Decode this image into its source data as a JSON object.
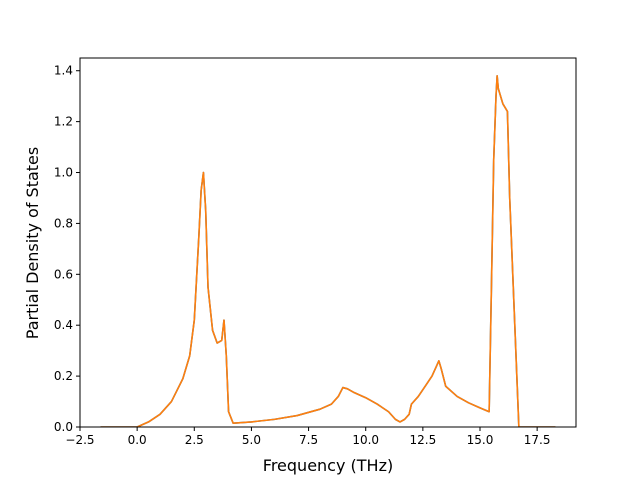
{
  "chart_data": {
    "type": "line",
    "title": "",
    "xlabel": "Frequency (THz)",
    "ylabel": "Partial Density of States",
    "xlim": [
      -2.5,
      19.2
    ],
    "ylim": [
      0.0,
      1.45
    ],
    "xticks": [
      -2.5,
      0.0,
      2.5,
      5.0,
      7.5,
      10.0,
      12.5,
      15.0,
      17.5
    ],
    "xtick_labels": [
      "−2.5",
      "0.0",
      "2.5",
      "5.0",
      "7.5",
      "10.0",
      "12.5",
      "15.0",
      "17.5"
    ],
    "yticks": [
      0.0,
      0.2,
      0.4,
      0.6,
      0.8,
      1.0,
      1.2,
      1.4
    ],
    "ytick_labels": [
      "0.0",
      "0.2",
      "0.4",
      "0.6",
      "0.8",
      "1.0",
      "1.2",
      "1.4"
    ],
    "grid": false,
    "legend": "none",
    "series": [
      {
        "color": "#1f77b4",
        "x": [
          -1.6,
          0.0,
          0.5,
          1.0,
          1.5,
          2.0,
          2.3,
          2.5,
          2.7,
          2.8,
          2.9,
          3.0,
          3.1,
          3.3,
          3.5,
          3.7,
          3.8,
          3.9,
          4.0,
          4.2,
          5.0,
          6.0,
          7.0,
          8.0,
          8.5,
          8.8,
          9.0,
          9.2,
          9.5,
          10.0,
          10.5,
          11.0,
          11.3,
          11.5,
          11.7,
          11.9,
          12.0,
          12.3,
          12.6,
          12.9,
          13.1,
          13.2,
          13.3,
          13.5,
          14.0,
          14.5,
          15.0,
          15.4,
          15.5,
          15.6,
          15.7,
          15.75,
          15.8,
          16.0,
          16.2,
          16.3,
          16.5,
          16.7,
          17.0,
          18.3
        ],
        "values": [
          0.0,
          0.0,
          0.02,
          0.05,
          0.1,
          0.19,
          0.28,
          0.42,
          0.75,
          0.93,
          1.0,
          0.85,
          0.55,
          0.38,
          0.33,
          0.34,
          0.42,
          0.28,
          0.06,
          0.015,
          0.02,
          0.03,
          0.045,
          0.07,
          0.09,
          0.12,
          0.155,
          0.15,
          0.135,
          0.115,
          0.09,
          0.06,
          0.03,
          0.02,
          0.03,
          0.05,
          0.09,
          0.12,
          0.16,
          0.2,
          0.24,
          0.26,
          0.23,
          0.16,
          0.12,
          0.095,
          0.075,
          0.06,
          0.55,
          1.05,
          1.3,
          1.38,
          1.33,
          1.27,
          1.24,
          0.9,
          0.45,
          0.0,
          0.0,
          0.0
        ]
      },
      {
        "color": "#ff7f0e",
        "x": [
          -1.6,
          0.0,
          0.5,
          1.0,
          1.5,
          2.0,
          2.3,
          2.5,
          2.7,
          2.8,
          2.9,
          3.0,
          3.1,
          3.3,
          3.5,
          3.7,
          3.8,
          3.9,
          4.0,
          4.2,
          5.0,
          6.0,
          7.0,
          8.0,
          8.5,
          8.8,
          9.0,
          9.2,
          9.5,
          10.0,
          10.5,
          11.0,
          11.3,
          11.5,
          11.7,
          11.9,
          12.0,
          12.3,
          12.6,
          12.9,
          13.1,
          13.2,
          13.3,
          13.5,
          14.0,
          14.5,
          15.0,
          15.4,
          15.5,
          15.6,
          15.7,
          15.75,
          15.8,
          16.0,
          16.2,
          16.3,
          16.5,
          16.7,
          17.0,
          18.3
        ],
        "values": [
          0.0,
          0.0,
          0.02,
          0.05,
          0.1,
          0.19,
          0.28,
          0.42,
          0.75,
          0.93,
          1.0,
          0.85,
          0.55,
          0.38,
          0.33,
          0.34,
          0.42,
          0.28,
          0.06,
          0.015,
          0.02,
          0.03,
          0.045,
          0.07,
          0.09,
          0.12,
          0.155,
          0.15,
          0.135,
          0.115,
          0.09,
          0.06,
          0.03,
          0.02,
          0.03,
          0.05,
          0.09,
          0.12,
          0.16,
          0.2,
          0.24,
          0.26,
          0.23,
          0.16,
          0.12,
          0.095,
          0.075,
          0.06,
          0.55,
          1.05,
          1.3,
          1.38,
          1.33,
          1.27,
          1.24,
          0.9,
          0.45,
          0.0,
          0.0,
          0.0
        ]
      }
    ]
  }
}
